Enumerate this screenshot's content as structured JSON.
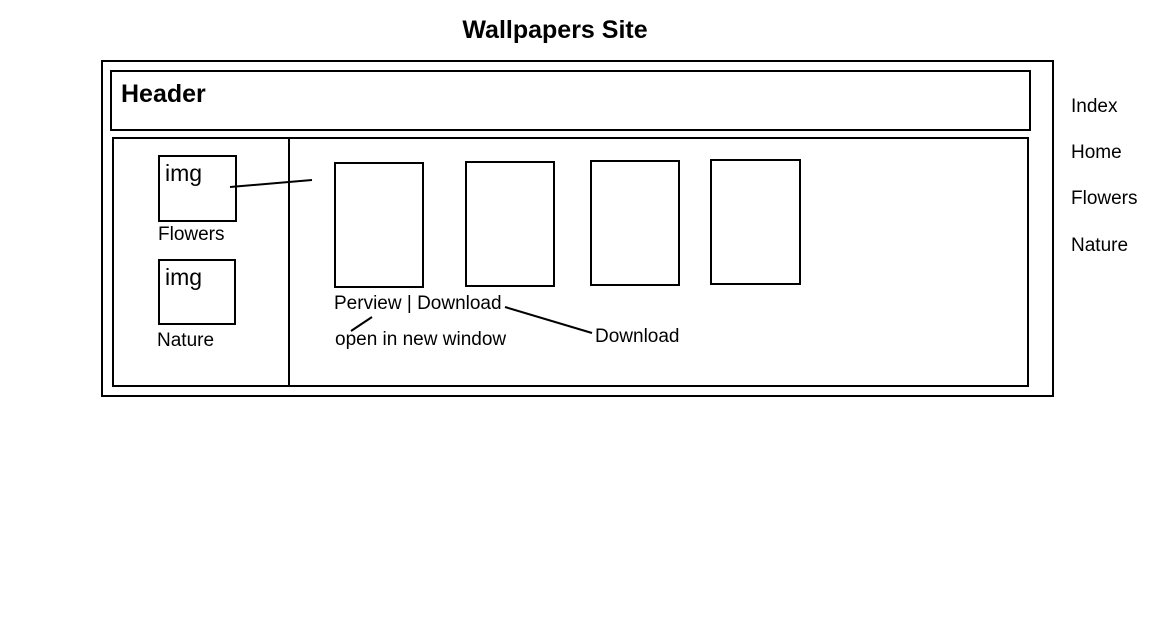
{
  "site": {
    "title": "Wallpapers Site",
    "header_label": "Header"
  },
  "sidebar": {
    "categories": [
      {
        "thumb_label": "img",
        "name": "Flowers"
      },
      {
        "thumb_label": "img",
        "name": "Nature"
      }
    ]
  },
  "gallery": {
    "actions_label": "Perview | Download",
    "preview_note": "open in new window",
    "download_note": "Download"
  },
  "sitemap": {
    "items": [
      "Index",
      "Home",
      "Flowers",
      "Nature"
    ]
  }
}
